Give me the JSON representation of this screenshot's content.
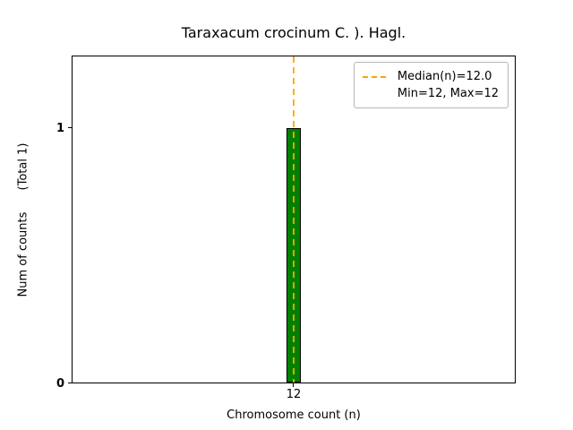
{
  "chart_data": {
    "type": "bar",
    "title": "Taraxacum crocinum C. ). Hagl.",
    "categories": [
      "12"
    ],
    "values": [
      1
    ],
    "xlabel": "Chromosome count (n)",
    "ylabel": "Num of counts",
    "ylabel_annotation": "(Total 1)",
    "yticks": [
      "0",
      "1"
    ],
    "ylim": [
      0,
      1.28
    ],
    "grid": false,
    "bar_color": "#008000",
    "bar_edge_color": "#000000",
    "median_line": {
      "value": 12,
      "color": "#FFA500",
      "style": "dashed"
    },
    "legend": {
      "position": "upper right",
      "entries": [
        {
          "label": "Median(n)=12.0",
          "marker": "dashed-line",
          "color": "#FFA500"
        },
        {
          "label": "Min=12, Max=12",
          "marker": "none"
        }
      ]
    }
  }
}
